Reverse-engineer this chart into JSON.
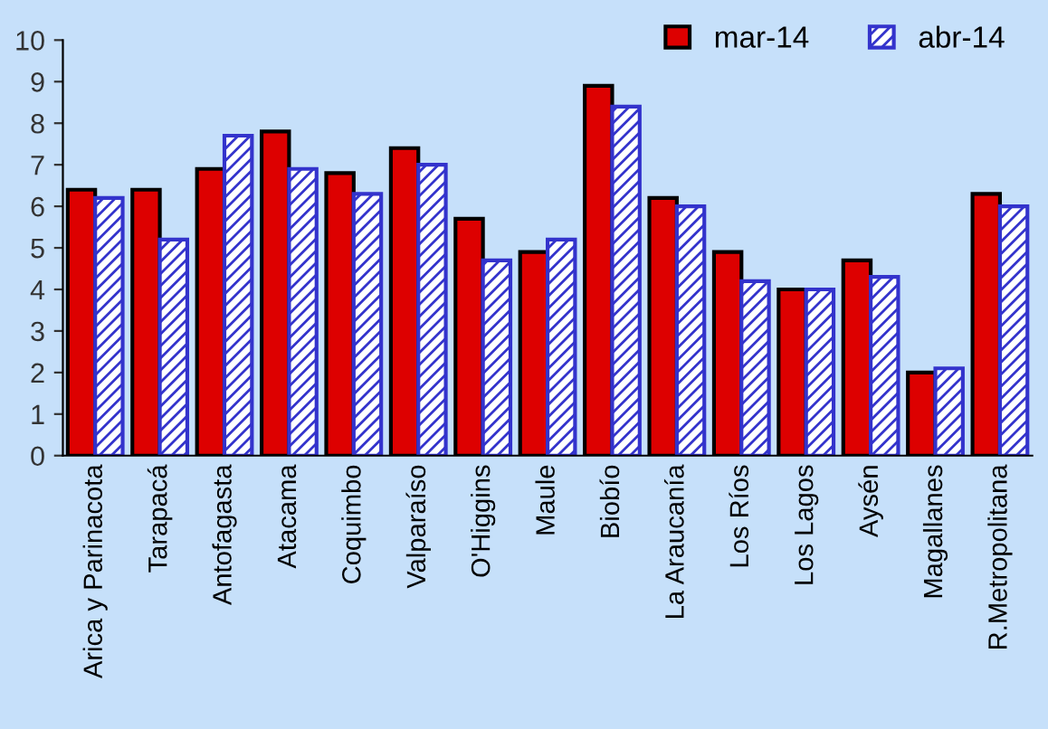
{
  "chart_data": {
    "type": "bar",
    "categories": [
      "Arica y Parinacota",
      "Tarapacá",
      "Antofagasta",
      "Atacama",
      "Coquimbo",
      "Valparaíso",
      "O'Higgins",
      "Maule",
      "Biobío",
      "La Araucanía",
      "Los Ríos",
      "Los Lagos",
      "Aysén",
      "Magallanes",
      "R.Metropolitana"
    ],
    "series": [
      {
        "name": "mar-14",
        "color": "#dd0000",
        "values": [
          6.4,
          6.4,
          6.9,
          7.8,
          6.8,
          7.4,
          5.7,
          4.9,
          8.9,
          6.2,
          4.9,
          4.0,
          4.7,
          2.0,
          6.3
        ]
      },
      {
        "name": "abr-14",
        "color": "#3333cc",
        "values": [
          6.2,
          5.2,
          7.7,
          6.9,
          6.3,
          7.0,
          4.7,
          5.2,
          8.4,
          6.0,
          4.2,
          4.0,
          4.3,
          2.1,
          6.0
        ]
      }
    ],
    "ylim": [
      0,
      10
    ],
    "yticks": [
      0,
      1,
      2,
      3,
      4,
      5,
      6,
      7,
      8,
      9,
      10
    ],
    "grid": false,
    "legend": "top right"
  }
}
